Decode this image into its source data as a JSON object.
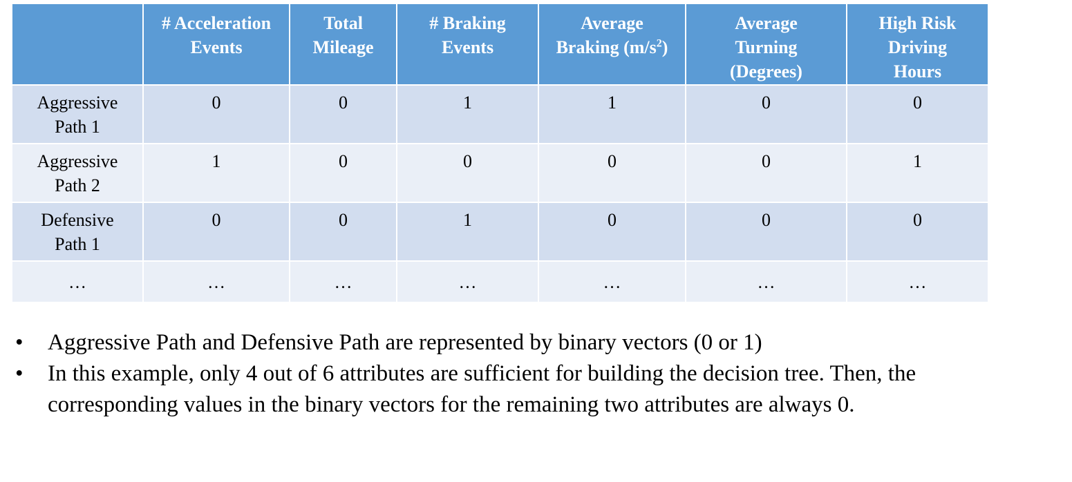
{
  "table": {
    "headers": [
      "",
      "# Acceleration\nEvents",
      "Total\nMileage",
      "# Braking\nEvents",
      "Average\nBraking (m/s",
      "Average\nTurning\n(Degrees)",
      "High Risk\nDriving\nHours"
    ],
    "braking_unit_sup": "2",
    "braking_unit_close": ")",
    "rows": [
      {
        "label": "Aggressive\nPath 1",
        "values": [
          "0",
          "0",
          "1",
          "1",
          "0",
          "0"
        ]
      },
      {
        "label": "Aggressive\nPath 2",
        "values": [
          "1",
          "0",
          "0",
          "0",
          "0",
          "1"
        ]
      },
      {
        "label": "Defensive\nPath 1",
        "values": [
          "0",
          "0",
          "1",
          "0",
          "0",
          "0"
        ]
      },
      {
        "label": "…",
        "values": [
          "…",
          "…",
          "…",
          "…",
          "…",
          "…"
        ]
      }
    ]
  },
  "bullets": {
    "marker": "•",
    "items": [
      "Aggressive Path and Defensive Path are represented by binary vectors (0 or 1)",
      "In this example, only 4 out of 6 attributes are sufficient for building the decision tree. Then, the corresponding values in the binary vectors for the remaining two attributes are always 0."
    ]
  },
  "colors": {
    "header_bg": "#5b9bd5",
    "row_dark": "#d2ddef",
    "row_light": "#eaeff7"
  }
}
